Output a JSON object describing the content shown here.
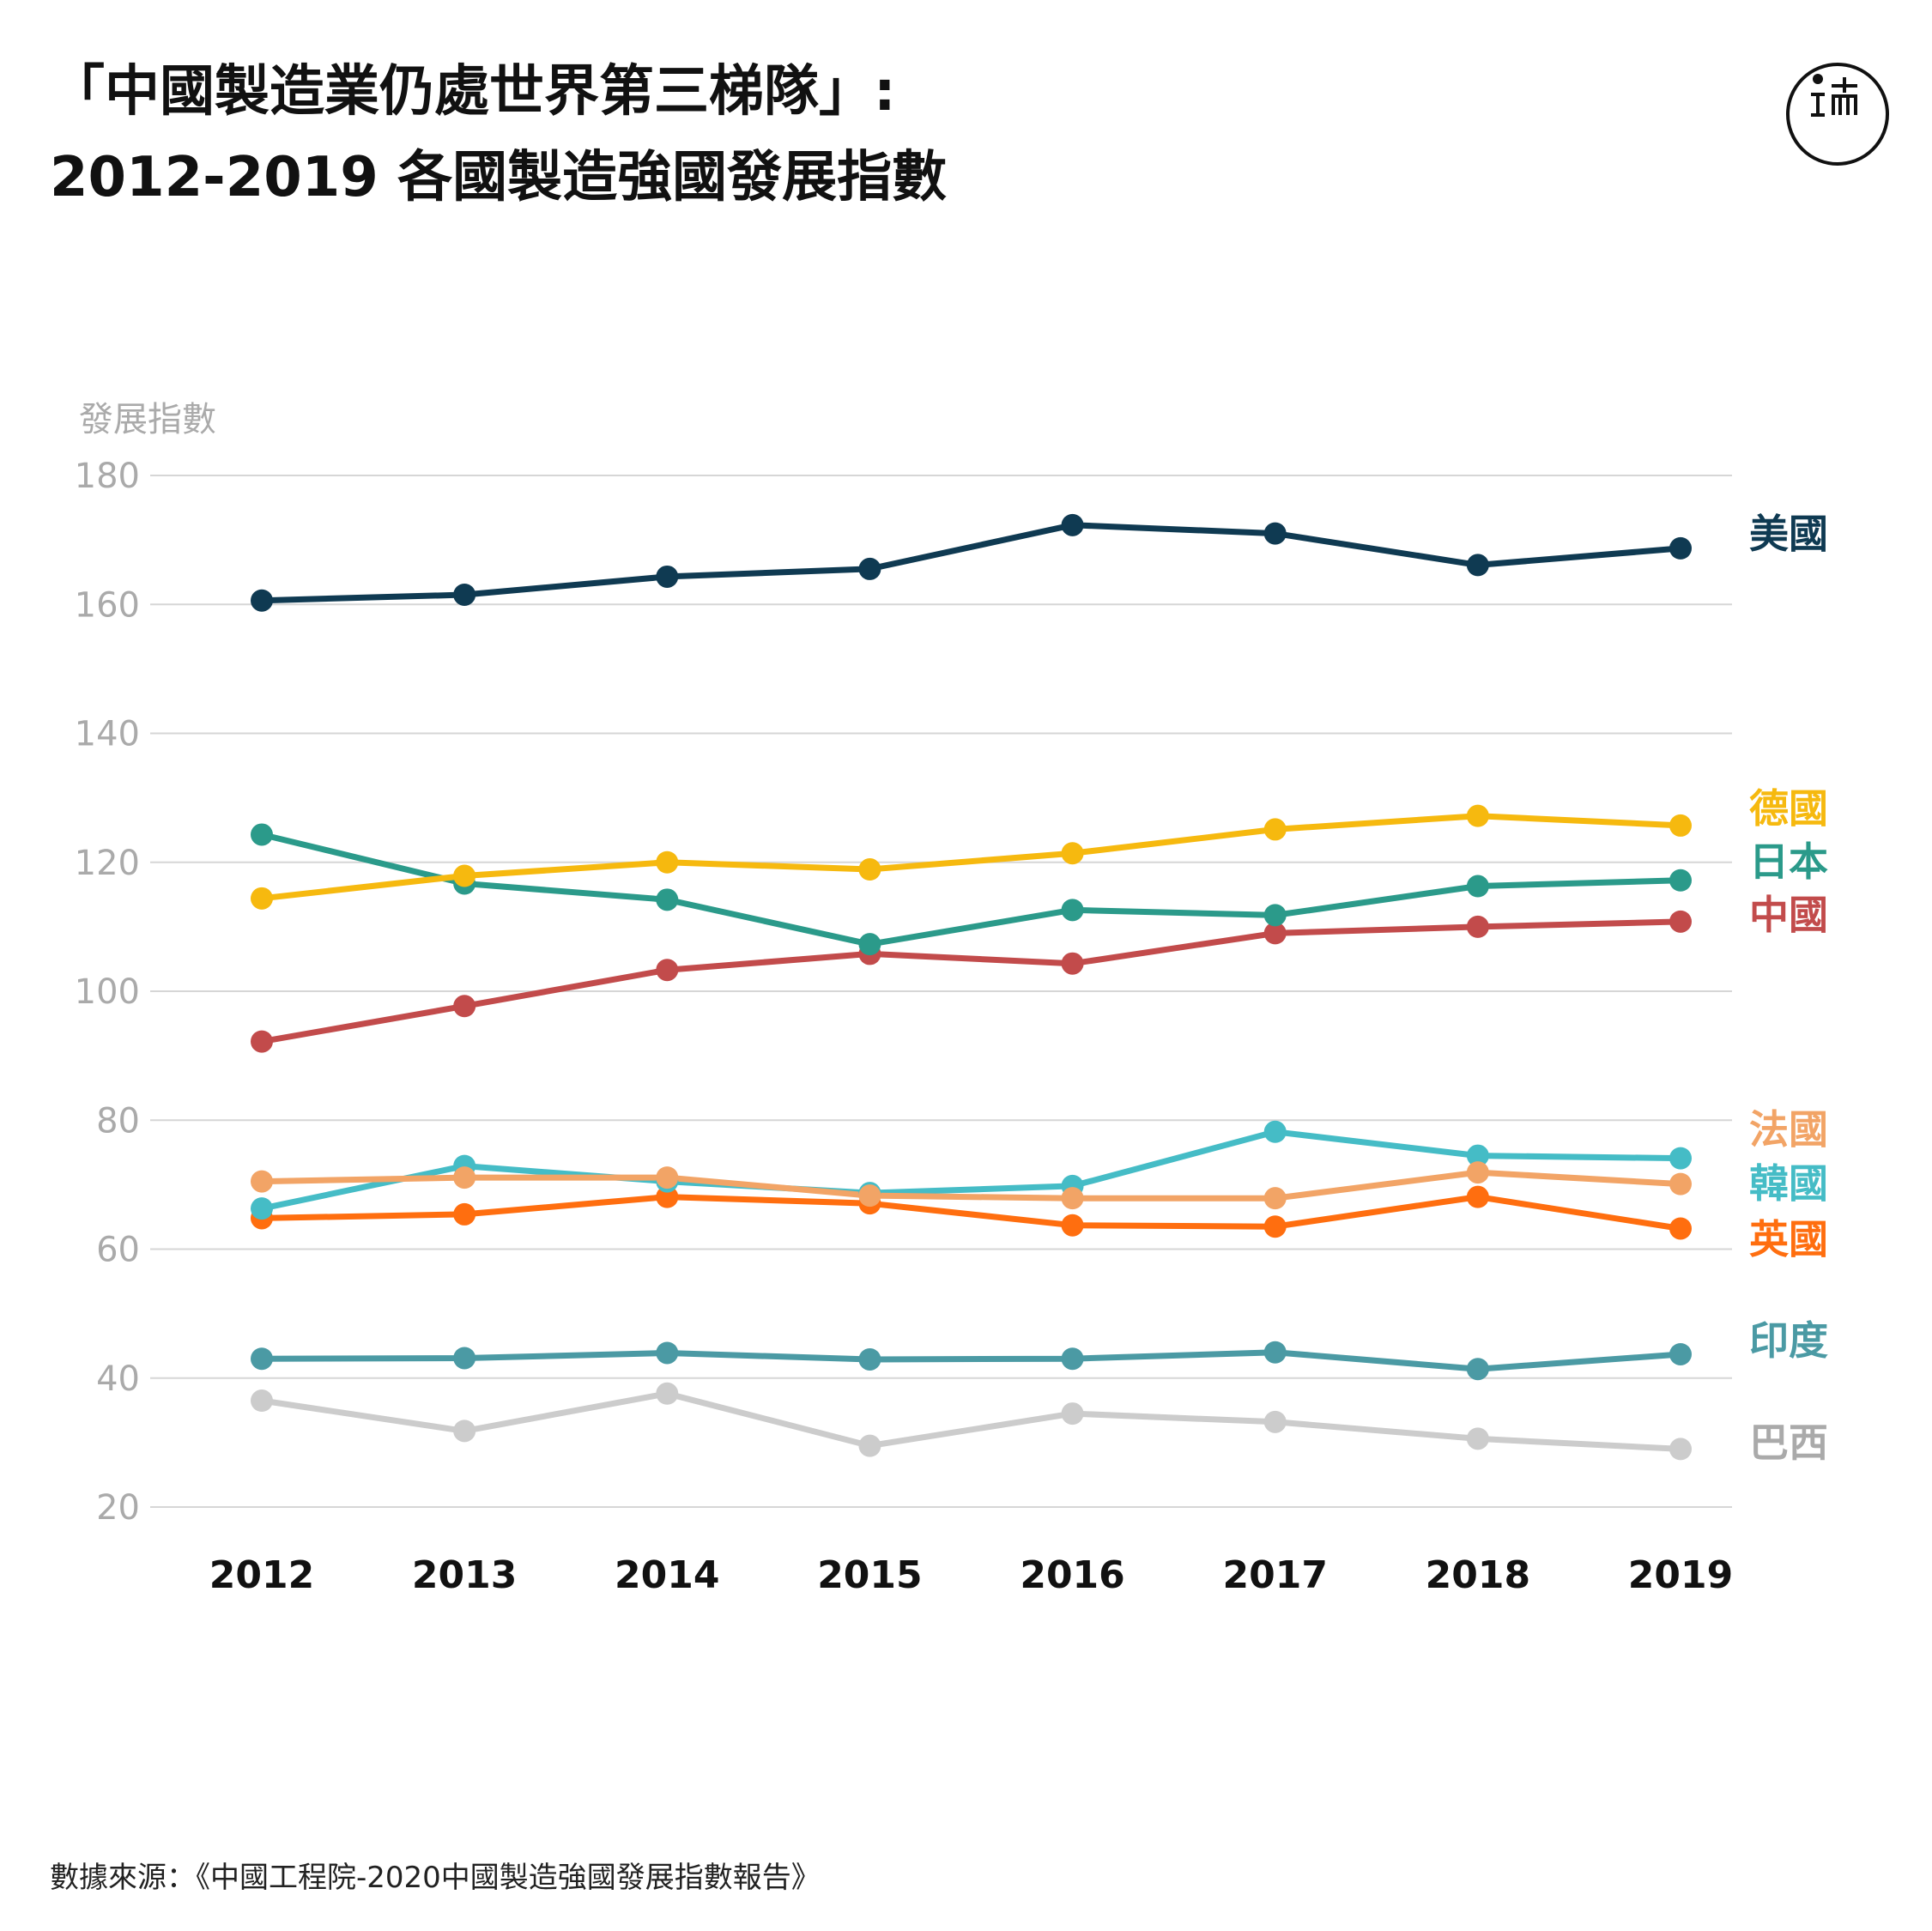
{
  "title_line1": "「中國製造業仍處世界第三梯隊」:",
  "title_line2": "2012-2019 各國製造強國發展指數",
  "source": "數據來源：《中國工程院-2020中國製造強國發展指數報告》",
  "logo": {
    "icon": "initium-media-logo"
  },
  "chart_data": {
    "type": "line",
    "ylabel": "發展指數",
    "xlabel": "",
    "ylim": [
      20,
      180
    ],
    "yticks": [
      20,
      40,
      60,
      80,
      100,
      120,
      140,
      160,
      180
    ],
    "grid": true,
    "legend": "direct-labels-right",
    "categories": [
      "2012",
      "2013",
      "2014",
      "2015",
      "2016",
      "2017",
      "2018",
      "2019"
    ],
    "series": [
      {
        "name": "美國",
        "color": "#0f3a52",
        "values": [
          160.6,
          161.5,
          164.3,
          165.5,
          172.3,
          171.0,
          166.1,
          168.7
        ]
      },
      {
        "name": "德國",
        "color": "#f6b90f",
        "values": [
          114.4,
          117.9,
          120.0,
          118.9,
          121.4,
          125.1,
          127.2,
          125.7
        ]
      },
      {
        "name": "日本",
        "color": "#2b9a8a",
        "values": [
          124.3,
          116.7,
          114.2,
          107.3,
          112.6,
          111.8,
          116.3,
          117.2
        ]
      },
      {
        "name": "中國",
        "color": "#c24b4b",
        "values": [
          92.2,
          97.7,
          103.3,
          105.8,
          104.3,
          109.0,
          110.0,
          110.8
        ]
      },
      {
        "name": "法國",
        "color": "#f2a466",
        "values": [
          70.5,
          71.1,
          71.1,
          68.3,
          67.9,
          67.9,
          71.9,
          70.1
        ]
      },
      {
        "name": "韓國",
        "color": "#45bcc6",
        "values": [
          66.3,
          72.9,
          70.5,
          68.7,
          69.8,
          78.2,
          74.5,
          74.1
        ]
      },
      {
        "name": "英國",
        "color": "#ff6e0f",
        "values": [
          64.8,
          65.4,
          68.1,
          67.1,
          63.7,
          63.5,
          68.1,
          63.2
        ]
      },
      {
        "name": "印度",
        "color": "#4b9aa4",
        "values": [
          43.0,
          43.1,
          43.9,
          42.9,
          43.0,
          44.0,
          41.4,
          43.7
        ]
      },
      {
        "name": "巴西",
        "color": "#cccccc",
        "values": [
          36.5,
          31.8,
          37.6,
          29.5,
          34.5,
          33.2,
          30.6,
          29.0
        ]
      }
    ],
    "label_colors": {
      "美國": "#0f3a52",
      "德國": "#f6b90f",
      "日本": "#2b9a8a",
      "中國": "#c24b4b",
      "法國": "#f2a466",
      "韓國": "#45bcc6",
      "英國": "#ff6e0f",
      "印度": "#4b9aa4",
      "巴西": "#aaaaaa"
    }
  }
}
